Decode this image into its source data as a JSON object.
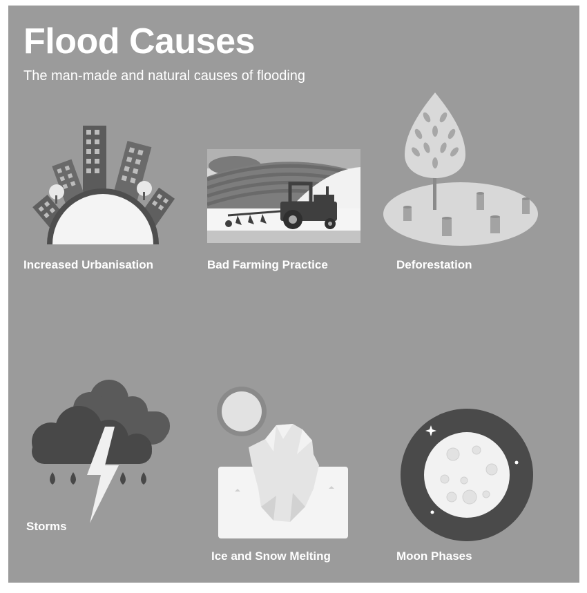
{
  "title": "Flood Causes",
  "subtitle": "The man-made and natural causes of flooding",
  "causes": [
    {
      "label": "Increased Urbanisation",
      "icon": "city-skyline-icon"
    },
    {
      "label": "Bad Farming Practice",
      "icon": "tractor-plough-icon"
    },
    {
      "label": "Deforestation",
      "icon": "tree-stumps-icon"
    },
    {
      "label": "Storms",
      "icon": "storm-cloud-lightning-icon"
    },
    {
      "label": "Ice and Snow Melting",
      "icon": "melting-iceberg-sun-icon"
    },
    {
      "label": "Moon Phases",
      "icon": "full-moon-icon"
    }
  ]
}
